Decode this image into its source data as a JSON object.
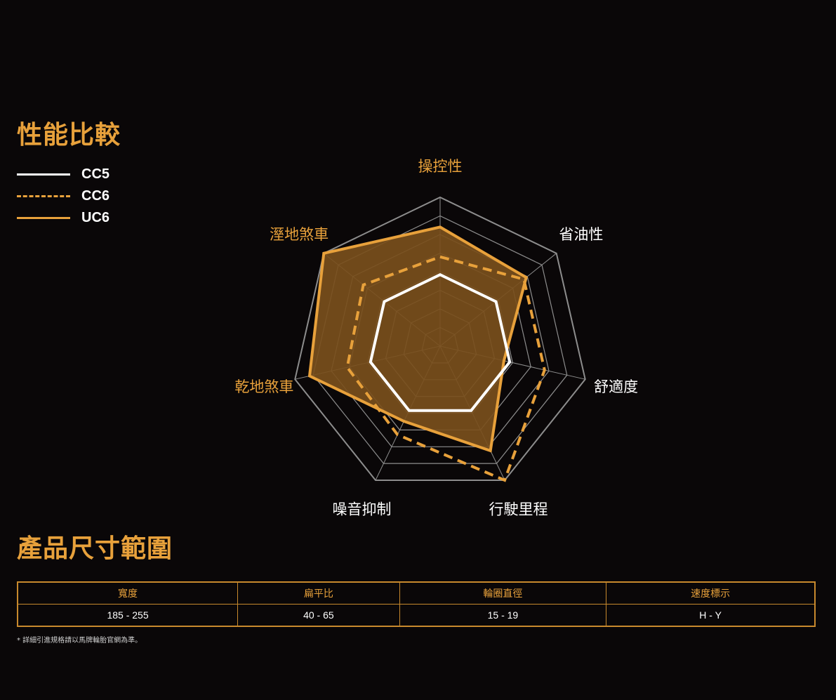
{
  "performance_title": "性能比較",
  "size_title": "產品尺寸範圍",
  "chart_data": {
    "type": "radar",
    "axes": [
      "操控性",
      "省油性",
      "舒適度",
      "行駛里程",
      "噪音抑制",
      "乾地煞車",
      "溼地煞車"
    ],
    "rmax": 5,
    "grid_levels": 8,
    "series": [
      {
        "name": "CC5",
        "values": [
          2.4,
          2.4,
          2.4,
          2.4,
          2.4,
          2.4,
          2.4
        ],
        "color": "#ffffff",
        "line": "solid",
        "fill": false
      },
      {
        "name": "CC6",
        "values": [
          3.0,
          3.6,
          3.6,
          5.0,
          3.3,
          3.2,
          3.3
        ],
        "color": "#e8a13b",
        "line": "dashed",
        "fill": false
      },
      {
        "name": "UC6",
        "values": [
          4.0,
          3.7,
          2.2,
          3.9,
          2.8,
          4.5,
          5.0
        ],
        "color": "#e8a13b",
        "line": "solid",
        "fill": true,
        "fill_color": "#7a4f1c"
      }
    ],
    "highlight_axes": [
      "操控性",
      "乾地煞車",
      "溼地煞車"
    ],
    "highlight_color": "#e8a13b",
    "label_color": "#ffffff",
    "grid_color": "#8d8d8d"
  },
  "table": {
    "headers": [
      "寬度",
      "扁平比",
      "輪圈直徑",
      "速度標示"
    ],
    "rows": [
      [
        "185 - 255",
        "40 - 65",
        "15 - 19",
        "H - Y"
      ]
    ]
  },
  "note": "* 詳細引進規格請以馬牌輪胎官網為準。"
}
